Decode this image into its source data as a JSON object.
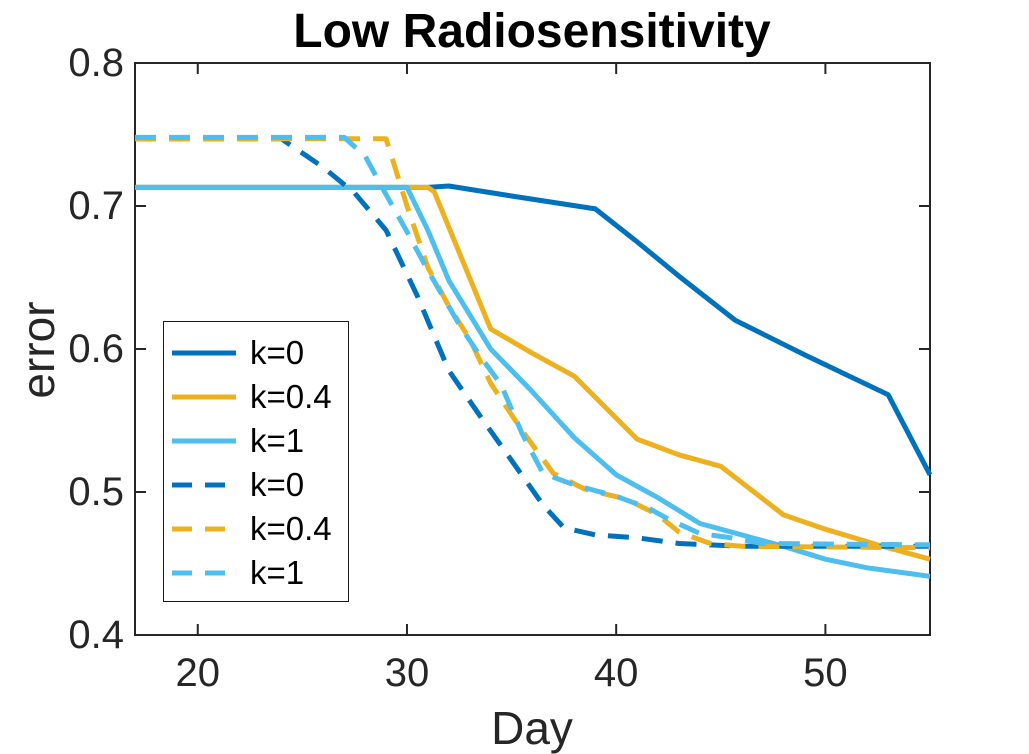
{
  "chart_data": {
    "type": "line",
    "title": "Low Radiosensitivity",
    "xlabel": "Day",
    "ylabel": "error",
    "xlim": [
      17,
      55
    ],
    "ylim": [
      0.4,
      0.8
    ],
    "grid": false,
    "box": true,
    "legend_position": "middle-left",
    "axis_color": "#262626",
    "background_color": "#ffffff",
    "xticks": [
      {
        "value": 20,
        "label": "20"
      },
      {
        "value": 30,
        "label": "30"
      },
      {
        "value": 40,
        "label": "40"
      },
      {
        "value": 50,
        "label": "50"
      }
    ],
    "yticks": [
      {
        "value": 0.4,
        "label": "0.4"
      },
      {
        "value": 0.5,
        "label": "0.5"
      },
      {
        "value": 0.6,
        "label": "0.6"
      },
      {
        "value": 0.7,
        "label": "0.7"
      },
      {
        "value": 0.8,
        "label": "0.8"
      }
    ],
    "series": [
      {
        "name": "k=0",
        "style": "solid",
        "color": "#0072BD",
        "points": [
          [
            17,
            0.713
          ],
          [
            31,
            0.713
          ],
          [
            32,
            0.714
          ],
          [
            35,
            0.707
          ],
          [
            39,
            0.698
          ],
          [
            41,
            0.675
          ],
          [
            43,
            0.651
          ],
          [
            45.7,
            0.62
          ],
          [
            49,
            0.596
          ],
          [
            51,
            0.582
          ],
          [
            53,
            0.568
          ],
          [
            55,
            0.512
          ]
        ]
      },
      {
        "name": "k=0.4",
        "style": "solid",
        "color": "#EDB120",
        "points": [
          [
            17,
            0.713
          ],
          [
            31,
            0.713
          ],
          [
            31.3,
            0.71
          ],
          [
            34,
            0.614
          ],
          [
            36,
            0.597
          ],
          [
            38,
            0.581
          ],
          [
            41,
            0.537
          ],
          [
            43,
            0.526
          ],
          [
            45,
            0.518
          ],
          [
            48,
            0.484
          ],
          [
            50,
            0.474
          ],
          [
            52.5,
            0.463
          ],
          [
            55,
            0.453
          ]
        ]
      },
      {
        "name": "k=1",
        "style": "solid",
        "color": "#4DBEEE",
        "points": [
          [
            17,
            0.713
          ],
          [
            30,
            0.713
          ],
          [
            31,
            0.683
          ],
          [
            32,
            0.648
          ],
          [
            34,
            0.6
          ],
          [
            36,
            0.57
          ],
          [
            38,
            0.538
          ],
          [
            40,
            0.512
          ],
          [
            42,
            0.496
          ],
          [
            44,
            0.478
          ],
          [
            46,
            0.47
          ],
          [
            48,
            0.462
          ],
          [
            50,
            0.453
          ],
          [
            52,
            0.447
          ],
          [
            55,
            0.441
          ]
        ]
      },
      {
        "name": "k=0",
        "style": "dashed",
        "color": "#0072BD",
        "points": [
          [
            17,
            0.747
          ],
          [
            24,
            0.747
          ],
          [
            26,
            0.727
          ],
          [
            27.5,
            0.709
          ],
          [
            29,
            0.683
          ],
          [
            30.5,
            0.637
          ],
          [
            32,
            0.585
          ],
          [
            33.5,
            0.553
          ],
          [
            35,
            0.522
          ],
          [
            36.5,
            0.491
          ],
          [
            37.5,
            0.475
          ],
          [
            39,
            0.47
          ],
          [
            41,
            0.468
          ],
          [
            43,
            0.464
          ],
          [
            46,
            0.462
          ],
          [
            55,
            0.462
          ]
        ]
      },
      {
        "name": "k=0.4",
        "style": "dashed",
        "color": "#EDB120",
        "points": [
          [
            17,
            0.747
          ],
          [
            29,
            0.747
          ],
          [
            30,
            0.7
          ],
          [
            31,
            0.657
          ],
          [
            32,
            0.63
          ],
          [
            33,
            0.607
          ],
          [
            34,
            0.576
          ],
          [
            35.5,
            0.543
          ],
          [
            37,
            0.513
          ],
          [
            38.5,
            0.502
          ],
          [
            40.5,
            0.495
          ],
          [
            42,
            0.484
          ],
          [
            43,
            0.472
          ],
          [
            44.5,
            0.464
          ],
          [
            46,
            0.462
          ],
          [
            55,
            0.461
          ]
        ]
      },
      {
        "name": "k=1",
        "style": "dashed",
        "color": "#4DBEEE",
        "points": [
          [
            17,
            0.748
          ],
          [
            27,
            0.748
          ],
          [
            28,
            0.735
          ],
          [
            29,
            0.708
          ],
          [
            30,
            0.682
          ],
          [
            31,
            0.655
          ],
          [
            32.5,
            0.617
          ],
          [
            33.5,
            0.595
          ],
          [
            34.5,
            0.575
          ],
          [
            35.5,
            0.541
          ],
          [
            36.5,
            0.513
          ],
          [
            38,
            0.505
          ],
          [
            40,
            0.497
          ],
          [
            41.5,
            0.489
          ],
          [
            42.5,
            0.481
          ],
          [
            44,
            0.471
          ],
          [
            45.5,
            0.468
          ],
          [
            47,
            0.464
          ],
          [
            55,
            0.463
          ]
        ]
      }
    ]
  }
}
